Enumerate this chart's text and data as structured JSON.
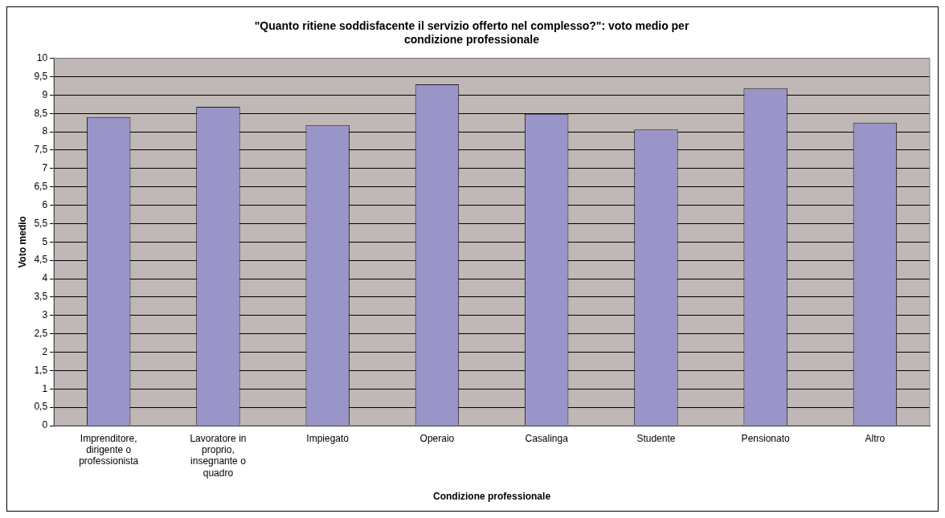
{
  "chart_data": {
    "type": "bar",
    "title": "\"Quanto ritiene soddisfacente il servizio offerto nel complesso?\": voto medio per condizione professionale",
    "xlabel": "Condizione professionale",
    "ylabel": "Voto medio",
    "categories": [
      "Imprenditore, dirigente o professionista",
      "Lavoratore in proprio, insegnante o quadro",
      "Impiegato",
      "Operaio",
      "Casalinga",
      "Studente",
      "Pensionato",
      "Altro"
    ],
    "values": [
      8.4,
      8.68,
      8.18,
      9.29,
      8.49,
      8.06,
      9.19,
      8.25
    ],
    "color": "#9a95c8",
    "ylim": [
      0,
      10
    ],
    "yticks": [
      0,
      {
        "value": 0.5,
        "label": "0,5"
      },
      1,
      {
        "value": 1.5,
        "label": "1,5"
      },
      2,
      {
        "value": 2.5,
        "label": "2,5"
      },
      3,
      {
        "value": 3.5,
        "label": "3,5"
      },
      4,
      {
        "value": 4.5,
        "label": "4,5"
      },
      5,
      {
        "value": 5.5,
        "label": "5,5"
      },
      6,
      {
        "value": 6.5,
        "label": "6,5"
      },
      7,
      {
        "value": 7.5,
        "label": "7,5"
      },
      8,
      {
        "value": 8.5,
        "label": "8,5"
      },
      9,
      {
        "value": 9.5,
        "label": "9,5"
      },
      10
    ],
    "grid": "y",
    "legend": false
  }
}
